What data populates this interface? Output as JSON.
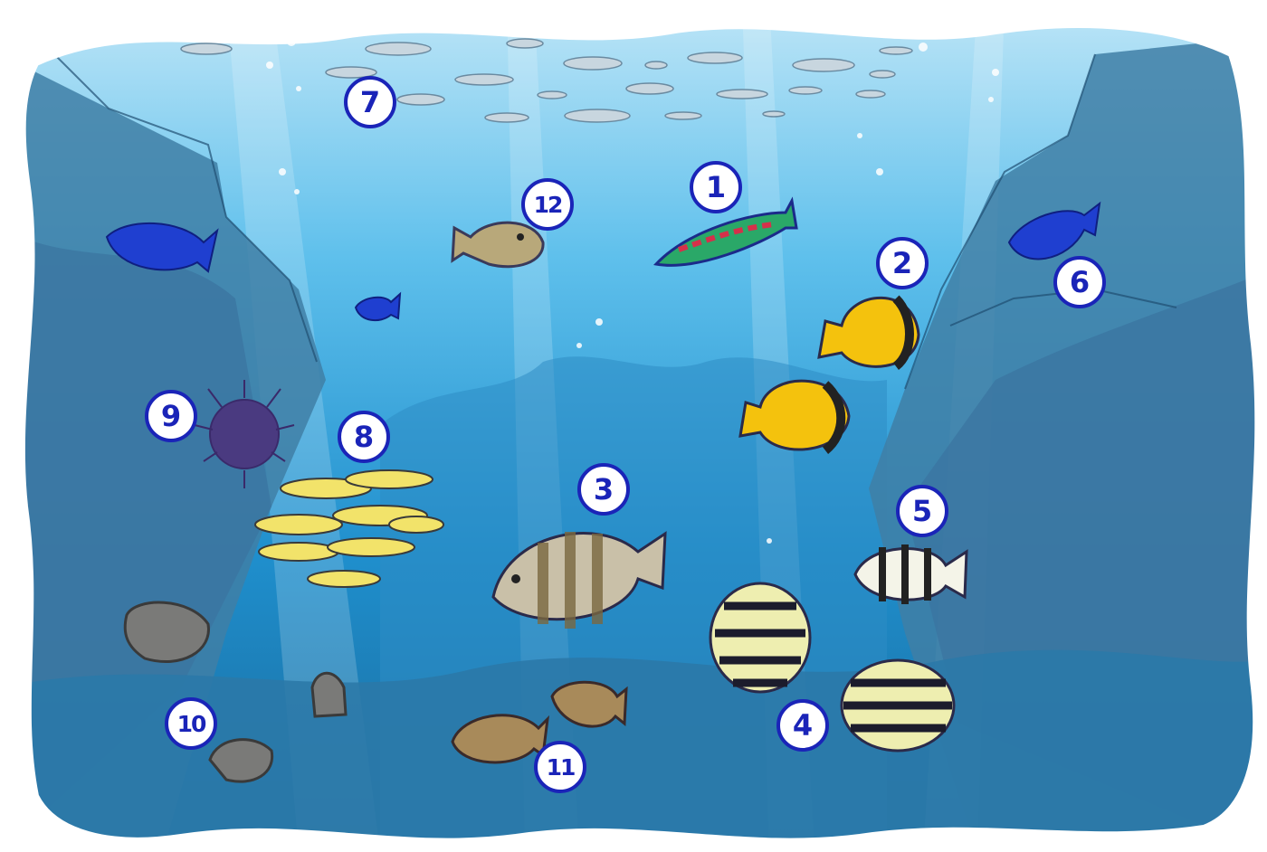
{
  "labels": {
    "n1": "1",
    "n2": "2",
    "n3": "3",
    "n4": "4",
    "n5": "5",
    "n6": "6",
    "n7": "7",
    "n8": "8",
    "n9": "9",
    "n10": "10",
    "n11": "11",
    "n12": "12"
  },
  "colors": {
    "water_top": "#a9dcf4",
    "water_mid": "#2a9fda",
    "water_deep": "#1a6a9c",
    "rock": "#3f7fa6",
    "badge_blue": "#1a24b8",
    "yellow_fish": "#f4c20d",
    "blue_fish": "#1f3fd0"
  },
  "icons": [
    "fish-school-icon",
    "wrasse-icon",
    "butterflyfish-icon",
    "grunt-icon",
    "sergeant-fish-icon",
    "damselfish-icon",
    "urchin-icon",
    "filefish-icon",
    "boxfish-icon",
    "shell-icon"
  ]
}
